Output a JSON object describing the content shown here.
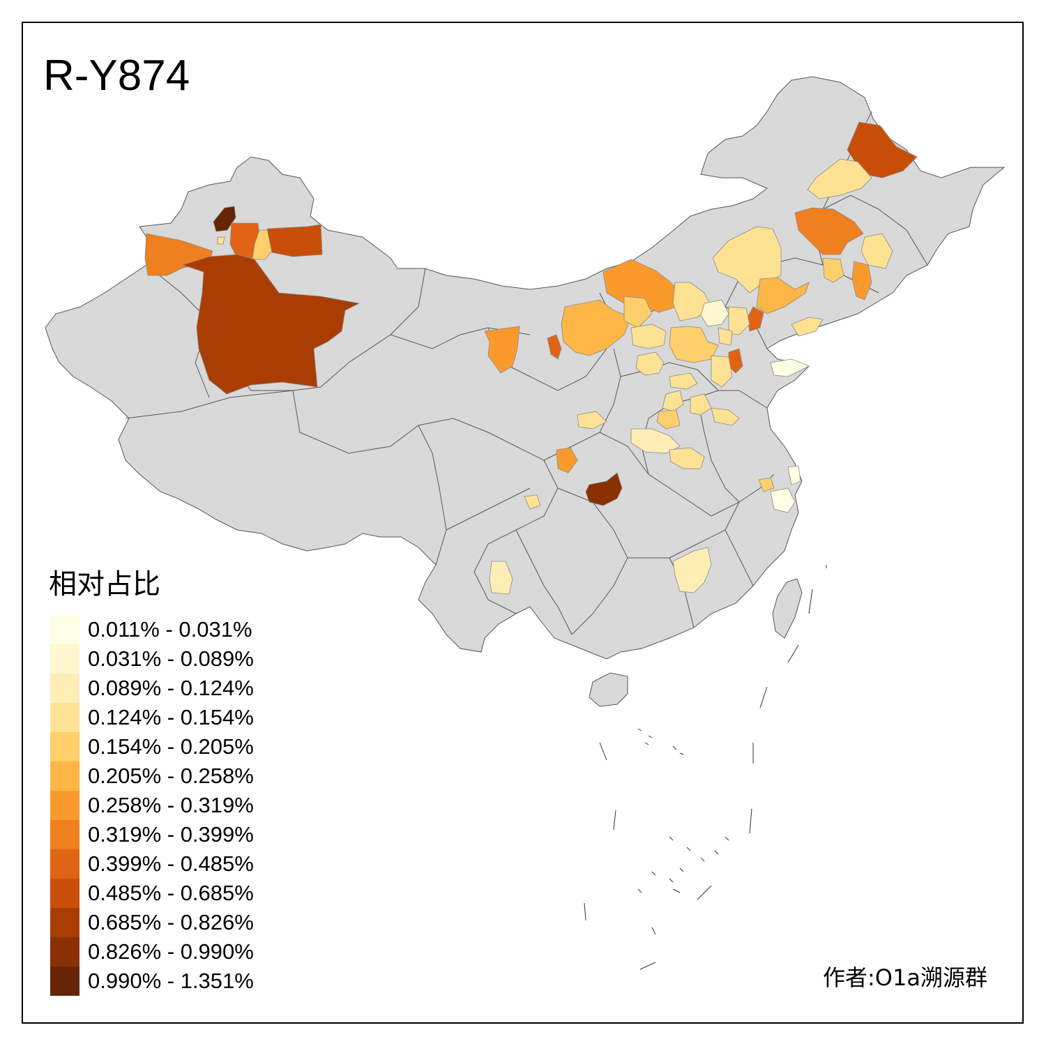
{
  "title": "R-Y874",
  "legend": {
    "title": "相对占比",
    "items": [
      {
        "label": "0.011% - 0.031%",
        "color": "#ffffe5"
      },
      {
        "label": "0.031% - 0.089%",
        "color": "#fff7cf"
      },
      {
        "label": "0.089% - 0.124%",
        "color": "#feeeb6"
      },
      {
        "label": "0.124% - 0.154%",
        "color": "#fee294"
      },
      {
        "label": "0.154% - 0.205%",
        "color": "#fecf6a"
      },
      {
        "label": "0.205% - 0.258%",
        "color": "#feb646"
      },
      {
        "label": "0.258% - 0.319%",
        "color": "#fb9a2c"
      },
      {
        "label": "0.319% - 0.399%",
        "color": "#f07f1f"
      },
      {
        "label": "0.399% - 0.485%",
        "color": "#e06414"
      },
      {
        "label": "0.485% - 0.685%",
        "color": "#c94f09"
      },
      {
        "label": "0.685% - 0.826%",
        "color": "#aa3d04"
      },
      {
        "label": "0.826% - 0.990%",
        "color": "#8a3104"
      },
      {
        "label": "0.990% - 1.351%",
        "color": "#662506"
      }
    ]
  },
  "credit": "作者:O1a溯源群",
  "map": {
    "no_data_color": "#d9d9d9",
    "border_color": "#555555"
  }
}
